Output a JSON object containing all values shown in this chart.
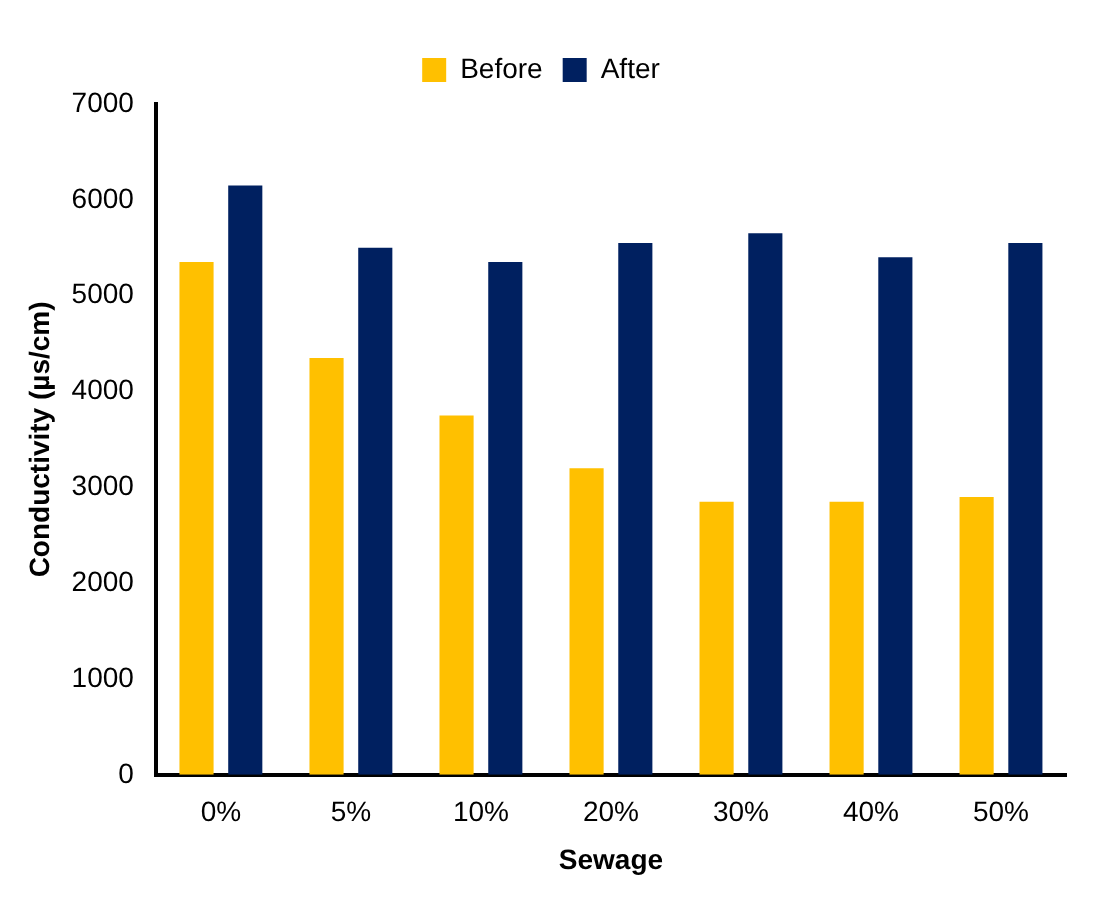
{
  "chart_data": {
    "type": "bar",
    "xlabel": "Sewage",
    "ylabel": "Conductivity (µs/cm)",
    "categories": [
      "0%",
      "5%",
      "10%",
      "20%",
      "30%",
      "40%",
      "50%"
    ],
    "series": [
      {
        "name": "Before",
        "color": "#ffc000",
        "values": [
          5350,
          4350,
          3750,
          3200,
          2850,
          2850,
          2900
        ]
      },
      {
        "name": "After",
        "color": "#002060",
        "values": [
          6150,
          5500,
          5350,
          5550,
          5650,
          5400,
          5550
        ]
      }
    ],
    "ylim": [
      0,
      7000
    ],
    "yticks": [
      0,
      1000,
      2000,
      3000,
      4000,
      5000,
      6000,
      7000
    ],
    "grid": false,
    "legend": "top"
  }
}
